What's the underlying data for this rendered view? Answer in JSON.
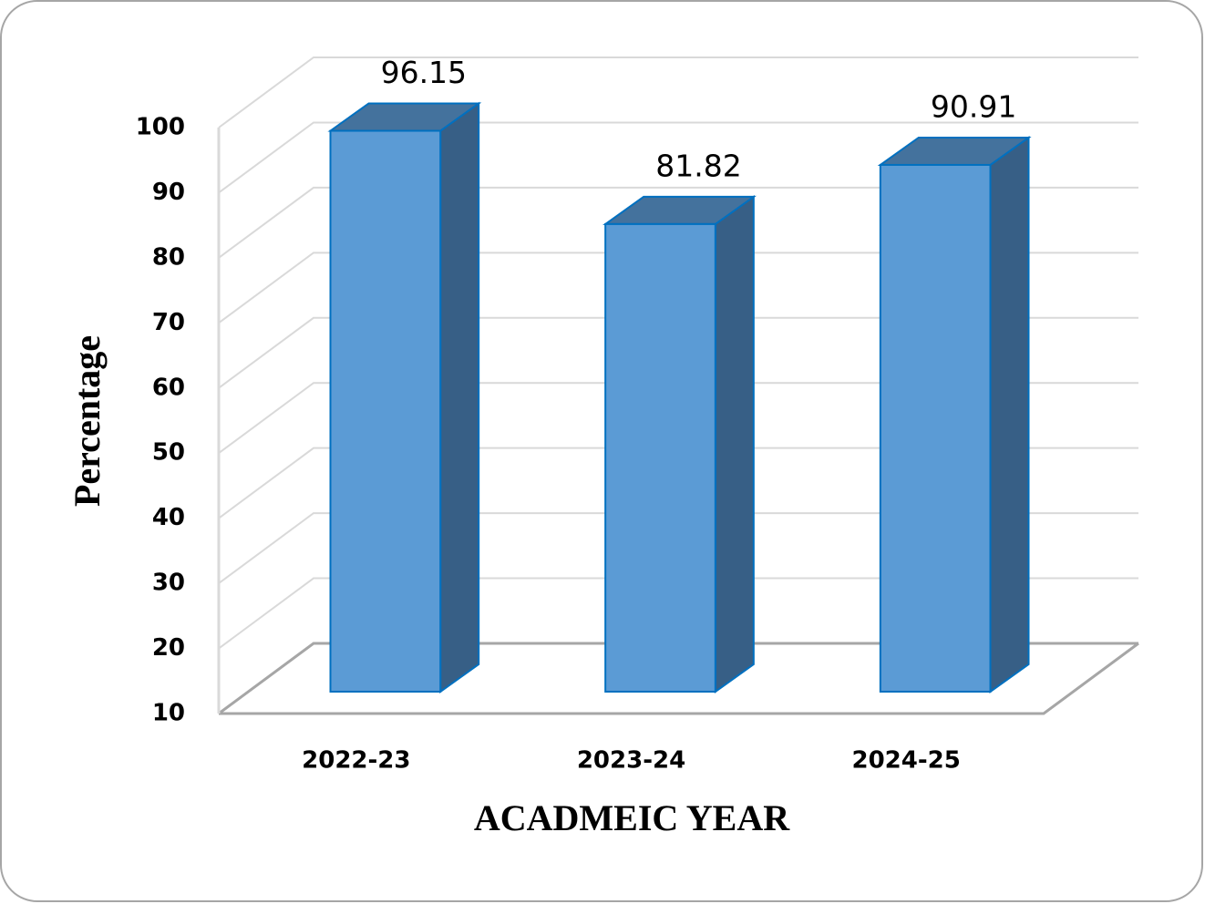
{
  "chart_data": {
    "type": "bar3d",
    "x_label": "ACADMEIC YEAR",
    "y_label": "Percentage",
    "categories": [
      "2022-23",
      "2023-24",
      "2024-25"
    ],
    "values": [
      96.15,
      81.82,
      90.91
    ],
    "color": "#5b9bd5",
    "ylim": [
      10,
      100
    ],
    "yticks": [
      10,
      20,
      30,
      40,
      50,
      60,
      70,
      80,
      90,
      100
    ],
    "grid": true
  }
}
